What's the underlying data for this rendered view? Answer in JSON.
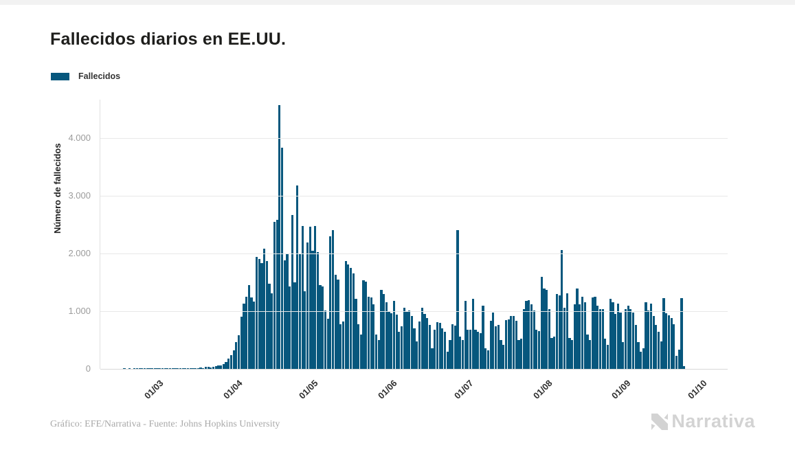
{
  "header": {
    "title": "Fallecidos diarios en EE.UU."
  },
  "legend": {
    "items": [
      {
        "label": "Fallecidos",
        "color": "#07577d"
      }
    ]
  },
  "chart_data": {
    "type": "bar",
    "title": "Fallecidos diarios en EE.UU.",
    "series_name": "Fallecidos",
    "xlabel": "",
    "ylabel": "Número de fallecidos",
    "ylim": [
      0,
      4670
    ],
    "grid": true,
    "legend_position": "top-left",
    "bar_color": "#07577d",
    "y_ticks": [
      {
        "value": 0,
        "label": "0"
      },
      {
        "value": 1000,
        "label": "1.000"
      },
      {
        "value": 2000,
        "label": "2.000"
      },
      {
        "value": 3000,
        "label": "3.000"
      },
      {
        "value": 4000,
        "label": "4.000"
      }
    ],
    "x_ticks": [
      {
        "label": "01/03",
        "day_offset": 23
      },
      {
        "label": "01/04",
        "day_offset": 54
      },
      {
        "label": "01/05",
        "day_offset": 84
      },
      {
        "label": "01/06",
        "day_offset": 115
      },
      {
        "label": "01/07",
        "day_offset": 145
      },
      {
        "label": "01/08",
        "day_offset": 176
      },
      {
        "label": "01/09",
        "day_offset": 207
      },
      {
        "label": "01/10",
        "day_offset": 237
      }
    ],
    "total_day_slots": 247,
    "values": [
      0,
      0,
      0,
      0,
      0,
      0,
      0,
      0,
      0,
      1,
      0,
      1,
      0,
      1,
      1,
      1,
      1,
      1,
      1,
      2,
      1,
      2,
      3,
      1,
      4,
      2,
      3,
      2,
      3,
      3,
      4,
      4,
      5,
      7,
      6,
      8,
      10,
      12,
      15,
      20,
      14,
      30,
      35,
      28,
      40,
      48,
      55,
      62,
      87,
      119,
      179,
      240,
      320,
      470,
      580,
      909,
      1135,
      1254,
      1452,
      1234,
      1163,
      1940,
      1901,
      1829,
      2087,
      1869,
      1480,
      1306,
      2544,
      2583,
      4580,
      3833,
      1881,
      1996,
      1433,
      2674,
      1500,
      3179,
      1988,
      2476,
      1341,
      2194,
      2464,
      2053,
      2484,
      2028,
      1452,
      1433,
      1016,
      870,
      2305,
      2405,
      1630,
      1552,
      778,
      820,
      1869,
      1810,
      1750,
      1651,
      1214,
      778,
      599,
      1532,
      1512,
      1254,
      1234,
      1115,
      599,
      500,
      1373,
      1294,
      1155,
      990,
      960,
      1175,
      937,
      639,
      738,
      1056,
      996,
      1016,
      917,
      698,
      480,
      817,
      1056,
      956,
      877,
      758,
      361,
      678,
      806,
      798,
      698,
      639,
      302,
      500,
      778,
      746,
      2405,
      560,
      500,
      1175,
      680,
      680,
      1214,
      678,
      639,
      619,
      1095,
      361,
      321,
      837,
      976,
      738,
      758,
      500,
      421,
      845,
      857,
      917,
      917,
      837,
      500,
      520,
      1036,
      1175,
      1194,
      1115,
      1016,
      678,
      659,
      1591,
      1393,
      1373,
      1036,
      540,
      560,
      1294,
      1274,
      2060,
      1056,
      1313,
      540,
      500,
      1115,
      1393,
      1115,
      1254,
      1155,
      599,
      500,
      1234,
      1254,
      1095,
      1036,
      1036,
      520,
      421,
      1214,
      1155,
      956,
      1135,
      976,
      460,
      1036,
      1095,
      1036,
      976,
      758,
      460,
      302,
      361,
      1155,
      1016,
      1135,
      920,
      760,
      639,
      480,
      1226,
      964,
      925,
      877,
      778,
      222,
      329,
      1226,
      44
    ]
  },
  "footer": {
    "credit": "Gráfico: EFE/Narrativa - Fuente: Johns Hopkins University",
    "brand": "Narrativa"
  }
}
